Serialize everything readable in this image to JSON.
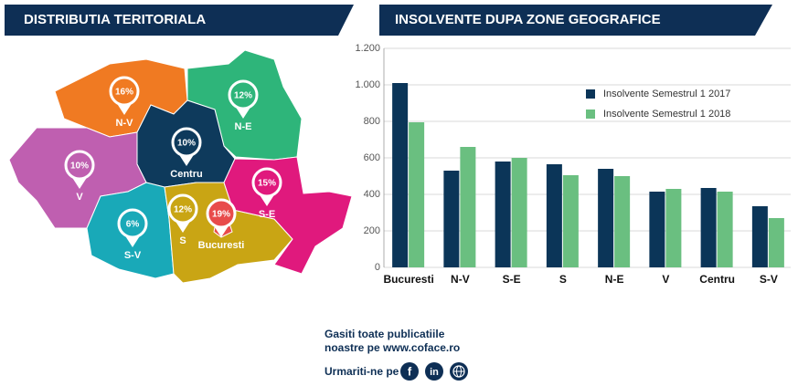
{
  "chart_data": [
    {
      "type": "map",
      "title": "DISTRIBUTIA TERITORIALA",
      "categories": [
        "N-V",
        "N-E",
        "Centru",
        "V",
        "S-V",
        "S",
        "Bucuresti",
        "S-E"
      ],
      "values": [
        16,
        12,
        10,
        10,
        6,
        12,
        19,
        15
      ],
      "value_labels": [
        "16%",
        "12%",
        "10%",
        "10%",
        "6%",
        "12%",
        "19%",
        "15%"
      ],
      "colors": [
        "#f07a22",
        "#2eb57a",
        "#0e3a5c",
        "#bf5fb0",
        "#19a9b8",
        "#c9a514",
        "#e84b4b",
        "#e0197d"
      ]
    },
    {
      "type": "bar",
      "title": "INSOLVENTE DUPA ZONE GEOGRAFICE",
      "categories": [
        "Bucuresti",
        "N-V",
        "S-E",
        "S",
        "N-E",
        "V",
        "Centru",
        "S-V"
      ],
      "series": [
        {
          "name": "Insolvente Semestrul 1 2017",
          "color": "#0b3558",
          "values": [
            1010,
            530,
            580,
            565,
            540,
            415,
            435,
            335
          ]
        },
        {
          "name": "Insolvente Semestrul 1 2018",
          "color": "#6abf80",
          "values": [
            795,
            660,
            600,
            505,
            500,
            430,
            415,
            270
          ]
        }
      ],
      "ylim": [
        0,
        1200
      ],
      "yticks": [
        0,
        200,
        400,
        600,
        800,
        {
          "value": 1000,
          "label": "1.000"
        },
        {
          "value": 1200,
          "label": "1.200"
        }
      ],
      "grid": true
    }
  ],
  "footer": {
    "lines": [
      "Gasiti toate publicatiile",
      "noastre pe www.coface.ro"
    ],
    "follow": "Urmariti-ne pe",
    "social": [
      "f",
      "in"
    ]
  }
}
